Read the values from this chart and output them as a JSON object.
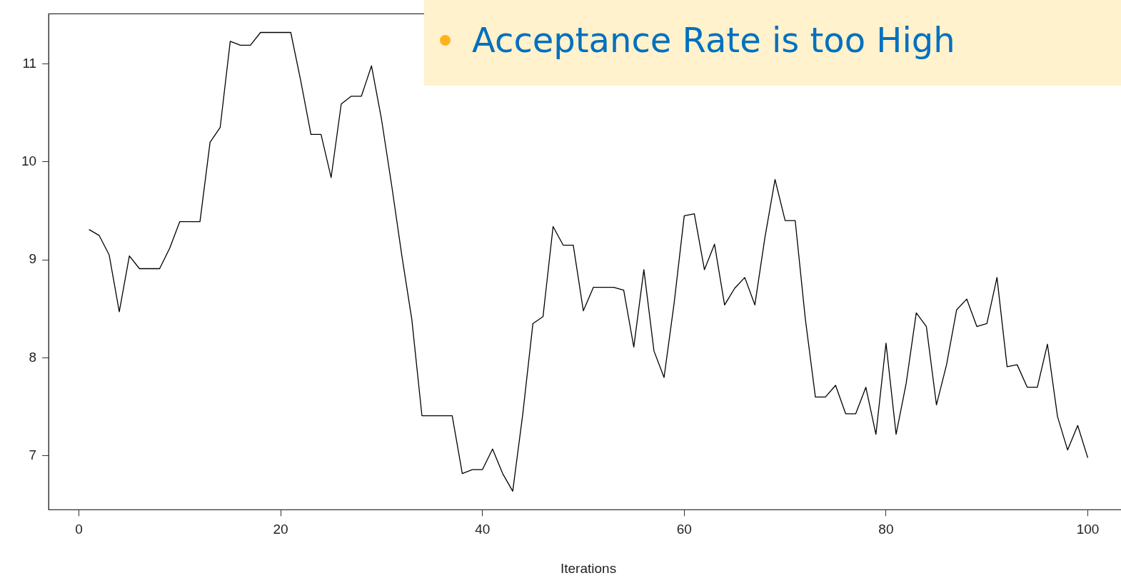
{
  "chart_data": {
    "type": "line",
    "xlabel": "Iterations",
    "x": [
      1,
      2,
      3,
      4,
      5,
      6,
      7,
      8,
      9,
      10,
      11,
      12,
      13,
      14,
      15,
      16,
      17,
      18,
      19,
      20,
      21,
      22,
      23,
      24,
      25,
      26,
      27,
      28,
      29,
      30,
      31,
      32,
      33,
      34,
      35,
      36,
      37,
      38,
      39,
      40,
      41,
      42,
      43,
      44,
      45,
      46,
      47,
      48,
      49,
      50,
      51,
      52,
      53,
      54,
      55,
      56,
      57,
      58,
      59,
      60,
      61,
      62,
      63,
      64,
      65,
      66,
      67,
      68,
      69,
      70,
      71,
      72,
      73,
      74,
      75,
      76,
      77,
      78,
      79,
      80,
      81,
      82,
      83,
      84,
      85,
      86,
      87,
      88,
      89,
      90,
      91,
      92,
      93,
      94,
      95,
      96,
      97,
      98,
      99,
      100
    ],
    "series": [
      {
        "color": "#000000",
        "values": [
          9.31,
          9.25,
          9.05,
          8.47,
          9.04,
          8.91,
          8.91,
          8.91,
          9.12,
          9.39,
          9.39,
          9.39,
          10.2,
          10.35,
          11.23,
          11.19,
          11.19,
          11.32,
          11.32,
          11.32,
          11.32,
          10.82,
          10.28,
          10.28,
          9.84,
          10.59,
          10.67,
          10.67,
          10.98,
          10.43,
          9.76,
          9.05,
          8.39,
          7.41,
          7.41,
          7.41,
          7.41,
          6.82,
          6.86,
          6.86,
          7.07,
          6.82,
          6.64,
          7.43,
          8.35,
          8.42,
          9.34,
          9.15,
          9.15,
          8.48,
          8.72,
          8.72,
          8.72,
          8.69,
          8.11,
          8.9,
          8.07,
          7.8,
          8.56,
          9.45,
          9.47,
          8.9,
          9.16,
          8.54,
          8.71,
          8.82,
          8.54,
          9.23,
          9.82,
          9.4,
          9.4,
          8.4,
          7.6,
          7.6,
          7.72,
          7.43,
          7.43,
          7.7,
          7.22,
          8.15,
          7.22,
          7.74,
          8.46,
          8.32,
          7.52,
          7.93,
          8.49,
          8.6,
          8.32,
          8.35,
          8.82,
          7.91,
          7.93,
          7.7,
          7.7,
          8.14,
          7.4,
          7.06,
          7.31,
          6.98
        ]
      }
    ],
    "xlim": [
      -3,
      104
    ],
    "ylim": [
      6.45,
      11.51
    ],
    "xticks": [
      0,
      20,
      40,
      60,
      80,
      100
    ],
    "yticks": [
      7,
      8,
      9,
      10,
      11
    ],
    "grid": false,
    "legend": false,
    "marker": "none",
    "line_style": "solid",
    "annotations": [
      "Acceptance Rate is too High"
    ]
  }
}
